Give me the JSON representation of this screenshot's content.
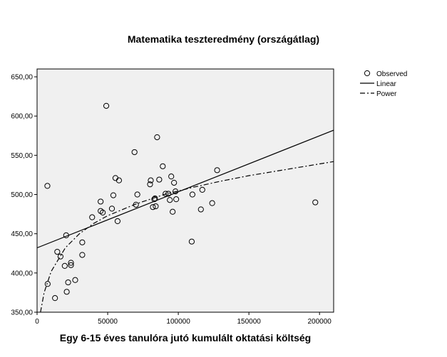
{
  "chart_data": {
    "type": "scatter",
    "title": "Matematika teszteredmény (országátlag)",
    "xlabel": "Egy 6-15 éves tanulóra jutó kumulált oktatási költség",
    "ylabel": "",
    "xlim": [
      0,
      210000
    ],
    "ylim": [
      350,
      660
    ],
    "x_ticks": [
      0,
      50000,
      100000,
      150000,
      200000
    ],
    "x_tick_labels": [
      "0",
      "50000",
      "100000",
      "150000",
      "200000"
    ],
    "y_ticks": [
      350,
      400,
      450,
      500,
      550,
      600,
      650
    ],
    "y_tick_labels": [
      "350,00",
      "400,00",
      "450,00",
      "500,00",
      "550,00",
      "600,00",
      "650,00"
    ],
    "background": "#f0f0f0",
    "grid": false,
    "legend_position": "top-right, outside plot",
    "series": [
      {
        "name": "Observed",
        "marker": "open-circle",
        "points": [
          [
            7300,
            511
          ],
          [
            7500,
            386
          ],
          [
            12700,
            368
          ],
          [
            14300,
            427
          ],
          [
            16600,
            421
          ],
          [
            19600,
            409
          ],
          [
            20600,
            448
          ],
          [
            21000,
            376
          ],
          [
            22000,
            388
          ],
          [
            24000,
            410
          ],
          [
            24000,
            413
          ],
          [
            27000,
            391
          ],
          [
            32000,
            423
          ],
          [
            32000,
            439
          ],
          [
            39000,
            471
          ],
          [
            45000,
            479
          ],
          [
            45000,
            491
          ],
          [
            46500,
            477
          ],
          [
            49000,
            613
          ],
          [
            53000,
            482
          ],
          [
            54000,
            499
          ],
          [
            55500,
            521
          ],
          [
            57000,
            466
          ],
          [
            58000,
            518
          ],
          [
            69000,
            554
          ],
          [
            70000,
            487
          ],
          [
            71000,
            500
          ],
          [
            80000,
            513
          ],
          [
            80500,
            518
          ],
          [
            82000,
            484
          ],
          [
            83000,
            494
          ],
          [
            83500,
            495
          ],
          [
            84000,
            485
          ],
          [
            85000,
            573
          ],
          [
            86500,
            519
          ],
          [
            89000,
            536
          ],
          [
            91000,
            501
          ],
          [
            93000,
            501
          ],
          [
            94000,
            493
          ],
          [
            95000,
            523
          ],
          [
            96000,
            478
          ],
          [
            97000,
            515
          ],
          [
            98000,
            504
          ],
          [
            98500,
            494
          ],
          [
            109500,
            440
          ],
          [
            110000,
            500
          ],
          [
            116000,
            481
          ],
          [
            117000,
            506
          ],
          [
            124000,
            489
          ],
          [
            127500,
            531
          ],
          [
            197000,
            490
          ]
        ]
      },
      {
        "name": "Linear",
        "type": "line",
        "style": "solid",
        "x": [
          0,
          210000
        ],
        "y": [
          432,
          582
        ]
      },
      {
        "name": "Power",
        "type": "line",
        "style": "dash-dot",
        "x": [
          2400,
          5000,
          10000,
          20000,
          30000,
          40000,
          50000,
          70000,
          90000,
          110000,
          130000,
          150000,
          170000,
          190000,
          210000
        ],
        "y": [
          350,
          375,
          402,
          432,
          450,
          463,
          473,
          488,
          500,
          509,
          517,
          524,
          530,
          536,
          542
        ]
      }
    ]
  }
}
